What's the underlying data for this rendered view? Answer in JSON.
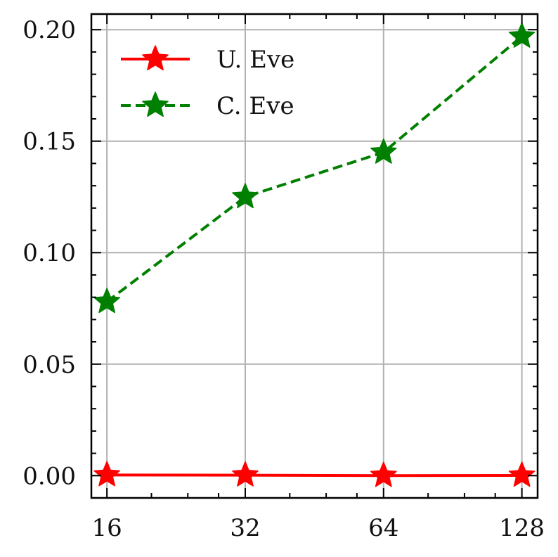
{
  "chart_data": {
    "type": "line",
    "title": "",
    "xlabel": "",
    "ylabel": "",
    "x_scale": "log2",
    "categories": [
      "16",
      "32",
      "64",
      "128"
    ],
    "x": [
      16,
      32,
      64,
      128
    ],
    "xlim": [
      14.8,
      138.5
    ],
    "ylim": [
      -0.01,
      0.207
    ],
    "yticks": [
      "0.00",
      "0.05",
      "0.10",
      "0.15",
      "0.20"
    ],
    "ytick_values": [
      0,
      0.05,
      0.1,
      0.15,
      0.2
    ],
    "grid": true,
    "legend_position": "top-left",
    "series": [
      {
        "name": "U. Eve",
        "values": [
          0.0003,
          0.0002,
          0.0,
          0.0001
        ],
        "color": "#ff0000",
        "line_style": "solid",
        "marker": "star-icon"
      },
      {
        "name": "C. Eve",
        "values": [
          0.078,
          0.125,
          0.145,
          0.197
        ],
        "color": "#008000",
        "line_style": "dashed",
        "marker": "star-icon"
      }
    ]
  }
}
